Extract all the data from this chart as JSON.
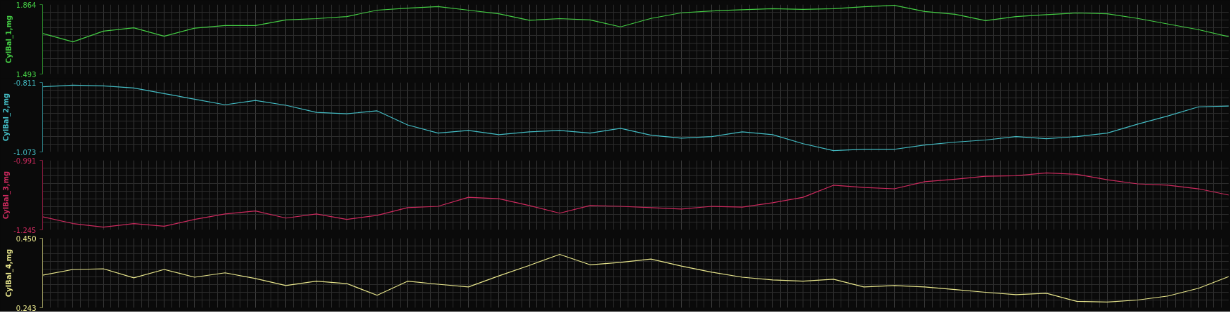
{
  "chart_data": [
    {
      "type": "line",
      "ylabel": "CylBal_1,mg",
      "categories": [
        null,
        null,
        null,
        null,
        null,
        null,
        null,
        null,
        null,
        null,
        null,
        null,
        null,
        null,
        null,
        null,
        null,
        null,
        null,
        null,
        null,
        null,
        null,
        null,
        null,
        null,
        null,
        null,
        null,
        null,
        null,
        null,
        null,
        null,
        null,
        null,
        null,
        null,
        null,
        null
      ],
      "ylim": [
        1.493,
        1.864
      ],
      "yticks": [
        1.493,
        1.864
      ],
      "grid": true,
      "tick_labels": "y",
      "series": [
        {
          "color": "#44cc44",
          "values": [
            1.71,
            1.665,
            1.722,
            1.74,
            1.695,
            1.738,
            1.752,
            1.752,
            1.782,
            1.789,
            1.8,
            1.834,
            1.845,
            1.853,
            1.834,
            1.815,
            1.78,
            1.789,
            1.782,
            1.745,
            1.79,
            1.82,
            1.83,
            1.836,
            1.842,
            1.838,
            1.842,
            1.852,
            1.86,
            1.827,
            1.812,
            1.778,
            1.8,
            1.81,
            1.819,
            1.815,
            1.79,
            1.76,
            1.73,
            1.692
          ]
        }
      ]
    },
    {
      "type": "line",
      "ylabel": "CylBal_2,mg",
      "categories": [
        null,
        null,
        null,
        null,
        null,
        null,
        null,
        null,
        null,
        null,
        null,
        null,
        null,
        null,
        null,
        null,
        null,
        null,
        null,
        null,
        null,
        null,
        null,
        null,
        null,
        null,
        null,
        null,
        null,
        null,
        null,
        null,
        null,
        null,
        null,
        null,
        null,
        null,
        null,
        null
      ],
      "ylim": [
        -1.073,
        -0.811
      ],
      "yticks": [
        -1.073,
        -0.811
      ],
      "grid": true,
      "tick_labels": "y",
      "series": [
        {
          "color": "#44bcc4",
          "values": [
            -0.827,
            -0.821,
            -0.824,
            -0.832,
            -0.853,
            -0.874,
            -0.895,
            -0.879,
            -0.897,
            -0.924,
            -0.929,
            -0.918,
            -0.971,
            -1.002,
            -0.992,
            -1.008,
            -0.997,
            -0.992,
            -1.002,
            -0.984,
            -1.01,
            -1.021,
            -1.015,
            -0.997,
            -1.008,
            -1.042,
            -1.068,
            -1.063,
            -1.063,
            -1.047,
            -1.036,
            -1.028,
            -1.015,
            -1.023,
            -1.015,
            -1.002,
            -0.968,
            -0.937,
            -0.903,
            -0.9
          ]
        }
      ]
    },
    {
      "type": "line",
      "ylabel": "CylBal_3,mg",
      "categories": [
        null,
        null,
        null,
        null,
        null,
        null,
        null,
        null,
        null,
        null,
        null,
        null,
        null,
        null,
        null,
        null,
        null,
        null,
        null,
        null,
        null,
        null,
        null,
        null,
        null,
        null,
        null,
        null,
        null,
        null,
        null,
        null,
        null,
        null,
        null,
        null,
        null,
        null,
        null,
        null
      ],
      "ylim": [
        -1.245,
        -0.991
      ],
      "yticks": [
        -1.245,
        -0.991
      ],
      "grid": true,
      "tick_labels": "y",
      "series": [
        {
          "color": "#cc2a5e",
          "values": [
            -1.197,
            -1.222,
            -1.235,
            -1.222,
            -1.232,
            -1.207,
            -1.187,
            -1.176,
            -1.202,
            -1.187,
            -1.207,
            -1.192,
            -1.164,
            -1.159,
            -1.126,
            -1.131,
            -1.156,
            -1.184,
            -1.156,
            -1.159,
            -1.164,
            -1.169,
            -1.159,
            -1.162,
            -1.146,
            -1.126,
            -1.082,
            -1.09,
            -1.095,
            -1.069,
            -1.06,
            -1.049,
            -1.047,
            -1.037,
            -1.042,
            -1.062,
            -1.077,
            -1.082,
            -1.095,
            -1.118
          ]
        }
      ]
    },
    {
      "type": "line",
      "ylabel": "CylBal_4,mg",
      "categories": [
        null,
        null,
        null,
        null,
        null,
        null,
        null,
        null,
        null,
        null,
        null,
        null,
        null,
        null,
        null,
        null,
        null,
        null,
        null,
        null,
        null,
        null,
        null,
        null,
        null,
        null,
        null,
        null,
        null,
        null,
        null,
        null,
        null,
        null,
        null,
        null,
        null,
        null,
        null,
        null
      ],
      "ylim": [
        0.243,
        0.45
      ],
      "yticks": [
        0.243,
        {
          "value": 0.45,
          "label": "0.450"
        }
      ],
      "grid": true,
      "tick_labels": "y",
      "series": [
        {
          "color": "#e8e68c",
          "values": [
            0.34,
            0.357,
            0.359,
            0.332,
            0.357,
            0.334,
            0.347,
            0.33,
            0.309,
            0.322,
            0.315,
            0.28,
            0.322,
            0.313,
            0.305,
            0.338,
            0.369,
            0.402,
            0.371,
            0.378,
            0.388,
            0.367,
            0.349,
            0.334,
            0.326,
            0.322,
            0.328,
            0.305,
            0.309,
            0.305,
            0.297,
            0.289,
            0.282,
            0.286,
            0.262,
            0.26,
            0.266,
            0.278,
            0.301,
            0.336
          ]
        }
      ]
    }
  ]
}
